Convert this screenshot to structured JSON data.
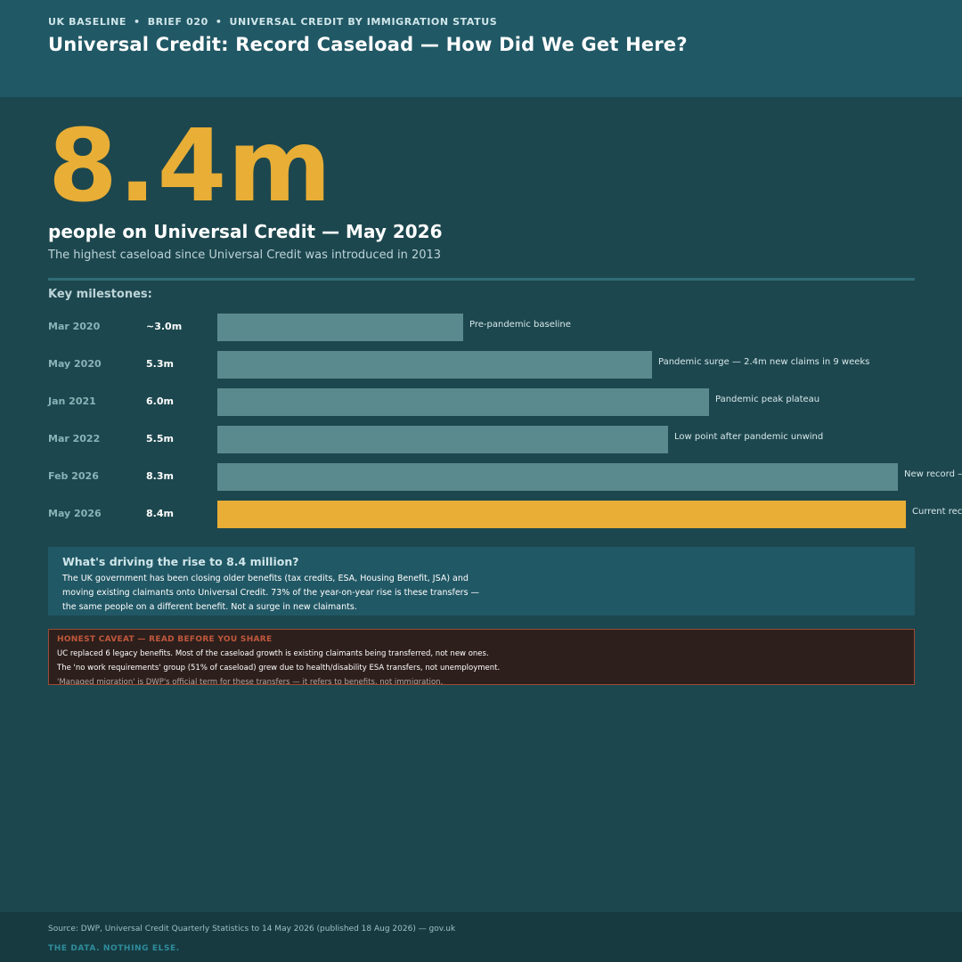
{
  "header": {
    "kicker": [
      "UK BASELINE",
      "BRIEF 020",
      "UNIVERSAL CREDIT BY IMMIGRATION STATUS"
    ],
    "kicker_separator": "•",
    "title": "Universal Credit: Record Caseload — How Did We Get Here?"
  },
  "hero": {
    "number": "8.4m",
    "headline": "people on Universal Credit — May 2026",
    "subline": "The highest caseload since Universal Credit was introduced in 2013"
  },
  "milestones_label": "Key milestones:",
  "colors": {
    "bar_default": "#5a8a8e",
    "bar_highlight": "#e8ae36",
    "accent": "#e8ae36",
    "caveat_heading": "#c0583c"
  },
  "chart_data": {
    "type": "bar",
    "orientation": "horizontal",
    "categories": [
      "Mar 2020",
      "May 2020",
      "Jan 2021",
      "Mar 2022",
      "Feb 2026",
      "May 2026"
    ],
    "values": [
      3.0,
      5.3,
      6.0,
      5.5,
      8.3,
      8.4
    ],
    "value_labels": [
      "~3.0m",
      "5.3m",
      "6.0m",
      "5.5m",
      "8.3m",
      "8.4m"
    ],
    "annotations": [
      "Pre-pandemic baseline",
      "Pandemic surge — 2.4m new claims in 9 weeks",
      "Pandemic peak plateau",
      "Low point after pandemic unwind",
      "New record —",
      "Current rec"
    ],
    "highlight_index": 5,
    "unit": "m"
  },
  "driver": {
    "question": "What's driving the rise to 8.4 million?",
    "lines": [
      "The UK government has been closing older benefits (tax credits, ESA, Housing Benefit, JSA) and",
      "moving existing claimants onto Universal Credit. 73% of the year-on-year rise is these transfers —",
      "the same people on a different benefit. Not a surge in new claimants."
    ]
  },
  "caveat": {
    "heading": "HONEST CAVEAT — READ BEFORE YOU SHARE",
    "lines": [
      "UC replaced 6 legacy benefits. Most of the caseload growth is existing claimants being transferred, not new ones.",
      "The 'no work requirements' group (51% of caseload) grew due to health/disability ESA transfers, not unemployment.",
      "'Managed migration' is DWP's official term for these transfers — it refers to benefits, not immigration."
    ]
  },
  "footer": {
    "source": "Source: DWP, Universal Credit Quarterly Statistics to 14 May 2026 (published 18 Aug 2026) — gov.uk",
    "tagline": "THE DATA. NOTHING ELSE."
  }
}
